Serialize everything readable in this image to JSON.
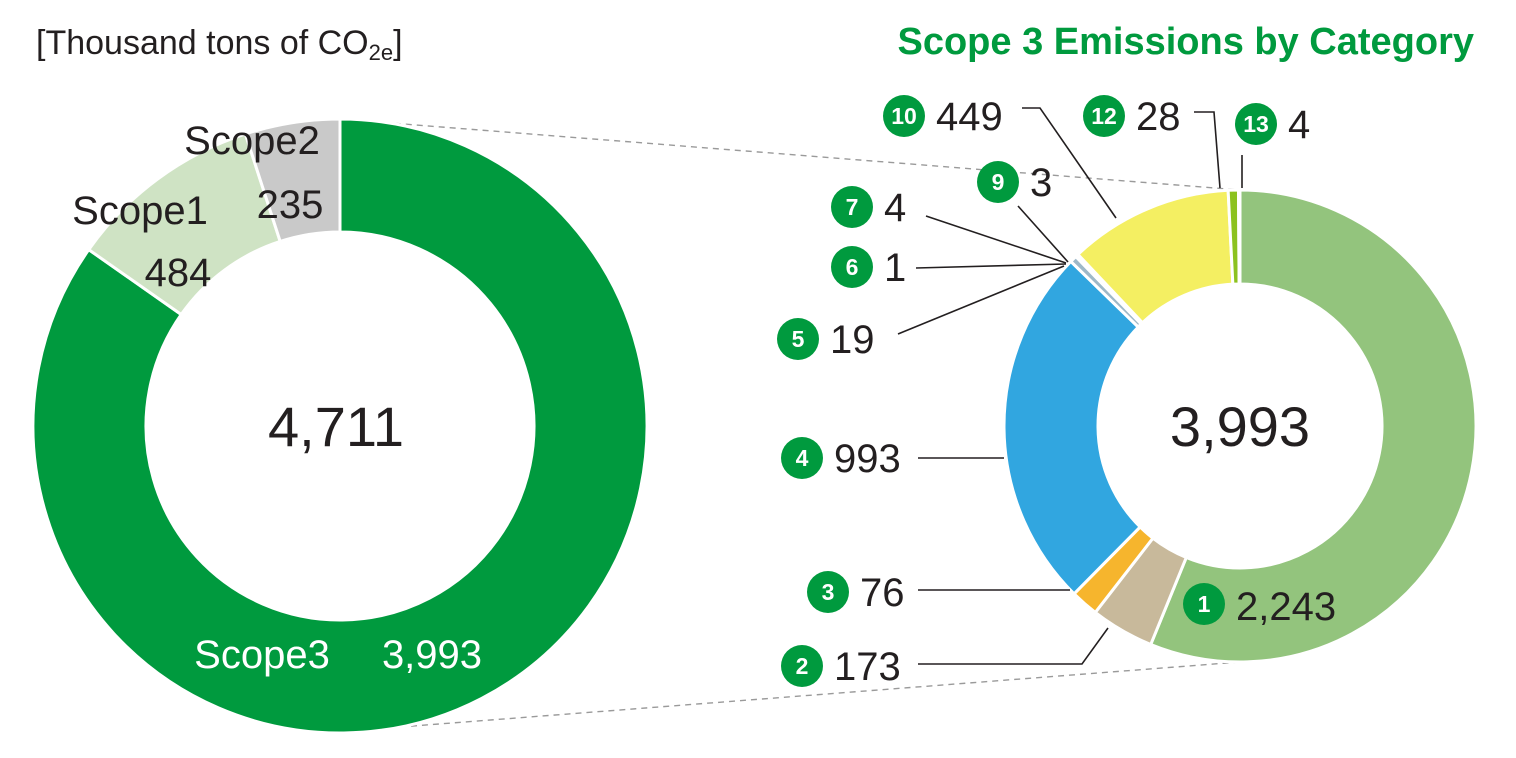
{
  "chart_data": [
    {
      "type": "pie",
      "variant": "donut",
      "unit_label": {
        "main": "[Thousand tons of CO",
        "sub": "2e",
        "close": "]"
      },
      "total_label": "4,711",
      "slices": [
        {
          "name": "Scope3",
          "label": "3,993",
          "value": 3993,
          "color": "#009a3e"
        },
        {
          "name": "Scope1",
          "label": "484",
          "value": 484,
          "color": "#cfe3c4"
        },
        {
          "name": "Scope2",
          "label": "235",
          "value": 235,
          "color": "#c9c9c9"
        }
      ]
    },
    {
      "type": "pie",
      "variant": "donut",
      "title": "Scope 3 Emissions by Category",
      "total_label": "3,993",
      "slices": [
        {
          "badge": "1",
          "label": "2,243",
          "value": 2243,
          "color": "#93c47d"
        },
        {
          "badge": "2",
          "label": "173",
          "value": 173,
          "color": "#c8b99b"
        },
        {
          "badge": "3",
          "label": "76",
          "value": 76,
          "color": "#f6b52d"
        },
        {
          "badge": "4",
          "label": "993",
          "value": 993,
          "color": "#31a6e0"
        },
        {
          "badge": "5",
          "label": "19",
          "value": 19,
          "color": "#9eb8c8"
        },
        {
          "badge": "6",
          "label": "1",
          "value": 1,
          "color": "#bdbdbd"
        },
        {
          "badge": "7",
          "label": "4",
          "value": 4,
          "color": "#a9a9a9"
        },
        {
          "badge": "9",
          "label": "3",
          "value": 3,
          "color": "#8f8f8f"
        },
        {
          "badge": "10",
          "label": "449",
          "value": 449,
          "color": "#f4ef62"
        },
        {
          "badge": "12",
          "label": "28",
          "value": 28,
          "color": "#8cc21f"
        },
        {
          "badge": "13",
          "label": "4",
          "value": 4,
          "color": "#5e9e2a"
        }
      ]
    }
  ]
}
